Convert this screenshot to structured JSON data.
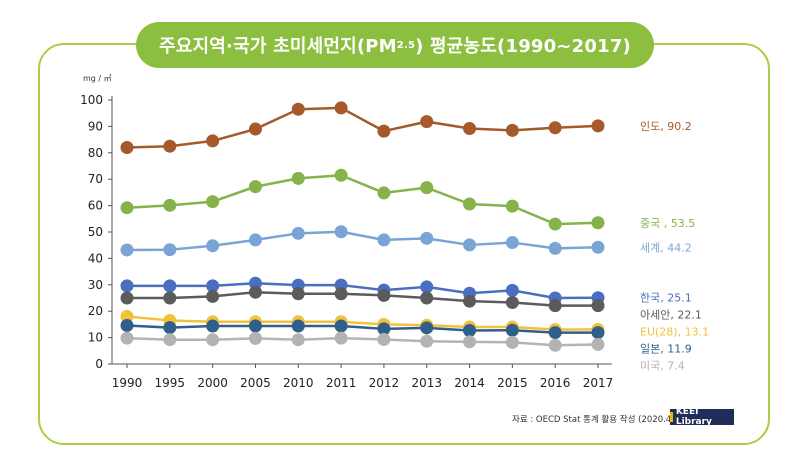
{
  "title": {
    "prefix": "주요지역·국가 초미세먼지(PM",
    "sub": "2.5",
    "suffix": ") 평균농도(1990~2017)"
  },
  "source": "자료 : OECD Stat 통계 활용 작성 (2020.4)",
  "logo": "KEEI Library",
  "chart_data": {
    "type": "line",
    "ylabel": "mg / ㎥",
    "ylim": [
      0,
      100
    ],
    "yticks": [
      0,
      10,
      20,
      30,
      40,
      50,
      60,
      70,
      80,
      90,
      100
    ],
    "categories": [
      "1990",
      "1995",
      "2000",
      "2005",
      "2010",
      "2011",
      "2012",
      "2013",
      "2014",
      "2015",
      "2016",
      "2017"
    ],
    "series": [
      {
        "name": "인도",
        "label": "인도, 90.2",
        "color": "#a45a2a",
        "values": [
          82.0,
          82.5,
          84.5,
          89.0,
          96.5,
          97.0,
          88.2,
          91.8,
          89.2,
          88.5,
          89.5,
          90.2
        ]
      },
      {
        "name": "중국",
        "label": "중국 , 53.5",
        "color": "#86b24a",
        "values": [
          59.2,
          60.1,
          61.5,
          67.2,
          70.3,
          71.5,
          64.8,
          66.8,
          60.6,
          59.8,
          53.0,
          53.5
        ]
      },
      {
        "name": "세계",
        "label": "세계, 44.2",
        "color": "#7ba4d6",
        "values": [
          43.2,
          43.3,
          44.8,
          47.0,
          49.5,
          50.1,
          47.0,
          47.6,
          45.1,
          46.0,
          43.8,
          44.2
        ]
      },
      {
        "name": "한국",
        "label": "한국, 25.1",
        "color": "#4a6fc0",
        "values": [
          29.6,
          29.6,
          29.6,
          30.6,
          29.9,
          29.9,
          28.0,
          29.2,
          26.8,
          27.9,
          25.0,
          25.1
        ]
      },
      {
        "name": "아세안",
        "label": "아세안, 22.1",
        "color": "#5b5b5b",
        "values": [
          25.0,
          25.0,
          25.6,
          27.2,
          26.6,
          26.6,
          26.0,
          25.0,
          23.8,
          23.3,
          22.1,
          22.1
        ]
      },
      {
        "name": "EU(28)",
        "label": "EU(28), 13.1",
        "color": "#f2c23a",
        "values": [
          18.0,
          16.5,
          16.0,
          16.0,
          16.0,
          16.0,
          15.0,
          14.7,
          14.0,
          14.0,
          13.0,
          13.1
        ]
      },
      {
        "name": "일본",
        "label": "일본, 11.9",
        "color": "#2f5f8a",
        "values": [
          14.6,
          13.8,
          14.4,
          14.4,
          14.4,
          14.4,
          13.3,
          13.7,
          12.7,
          12.8,
          11.9,
          11.9
        ]
      },
      {
        "name": "미국",
        "label": "미국, 7.4",
        "color": "#b3b3b3",
        "values": [
          9.8,
          9.2,
          9.2,
          9.7,
          9.2,
          9.8,
          9.3,
          8.6,
          8.4,
          8.2,
          7.1,
          7.4
        ]
      }
    ]
  }
}
